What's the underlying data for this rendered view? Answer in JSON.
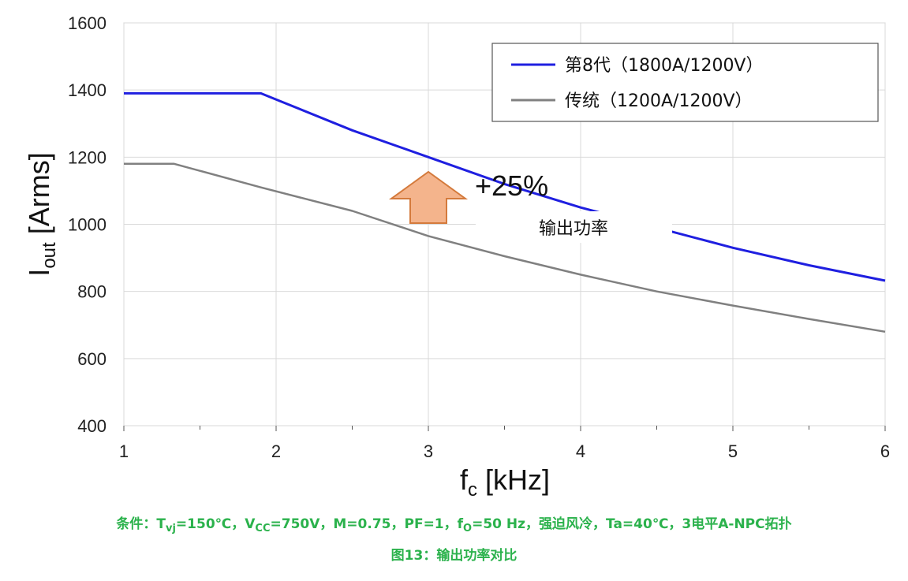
{
  "chart_data": {
    "type": "line",
    "x": [
      1,
      1.33,
      1.9,
      2.5,
      3,
      3.5,
      4,
      4.5,
      5,
      5.5,
      6
    ],
    "series": [
      {
        "name": "第8代（1800A/1200V）",
        "color": "#1f1fe0",
        "values": [
          1390,
          1390,
          1390,
          1280,
          1200,
          1120,
          1050,
          990,
          930,
          878,
          832
        ]
      },
      {
        "name": "传统（1200A/1200V）",
        "color": "#808080",
        "values": [
          1180,
          1180,
          1110,
          1040,
          965,
          905,
          850,
          800,
          758,
          718,
          680
        ]
      }
    ],
    "xlim": [
      1,
      6
    ],
    "ylim": [
      400,
      1600
    ],
    "xticks": [
      "1",
      "2",
      "3",
      "4",
      "5",
      "6"
    ],
    "yticks": [
      "400",
      "600",
      "800",
      "1000",
      "1200",
      "1400",
      "1600"
    ],
    "grid": true,
    "legend_position": "top-right",
    "ylabel_main": "I",
    "ylabel_sub": "out",
    "ylabel_rest": " [Arms]",
    "xlabel_main": "f",
    "xlabel_sub": "c",
    "xlabel_rest": " [kHz]",
    "annotations": {
      "increase_text": "+25%",
      "box_text": "输出功率",
      "arrow_color": "#f4b48c"
    }
  },
  "caption": {
    "line1": {
      "p1": "条件：T",
      "s1": "vj",
      "p2": "=150℃，V",
      "s2": "CC",
      "p3": "=750V，M=0.75，PF=1，f",
      "s3": "O",
      "p4": "=50 Hz，强迫风冷，Ta=40℃，3电平A-NPC拓扑"
    },
    "line2": "图13：输出功率对比"
  }
}
